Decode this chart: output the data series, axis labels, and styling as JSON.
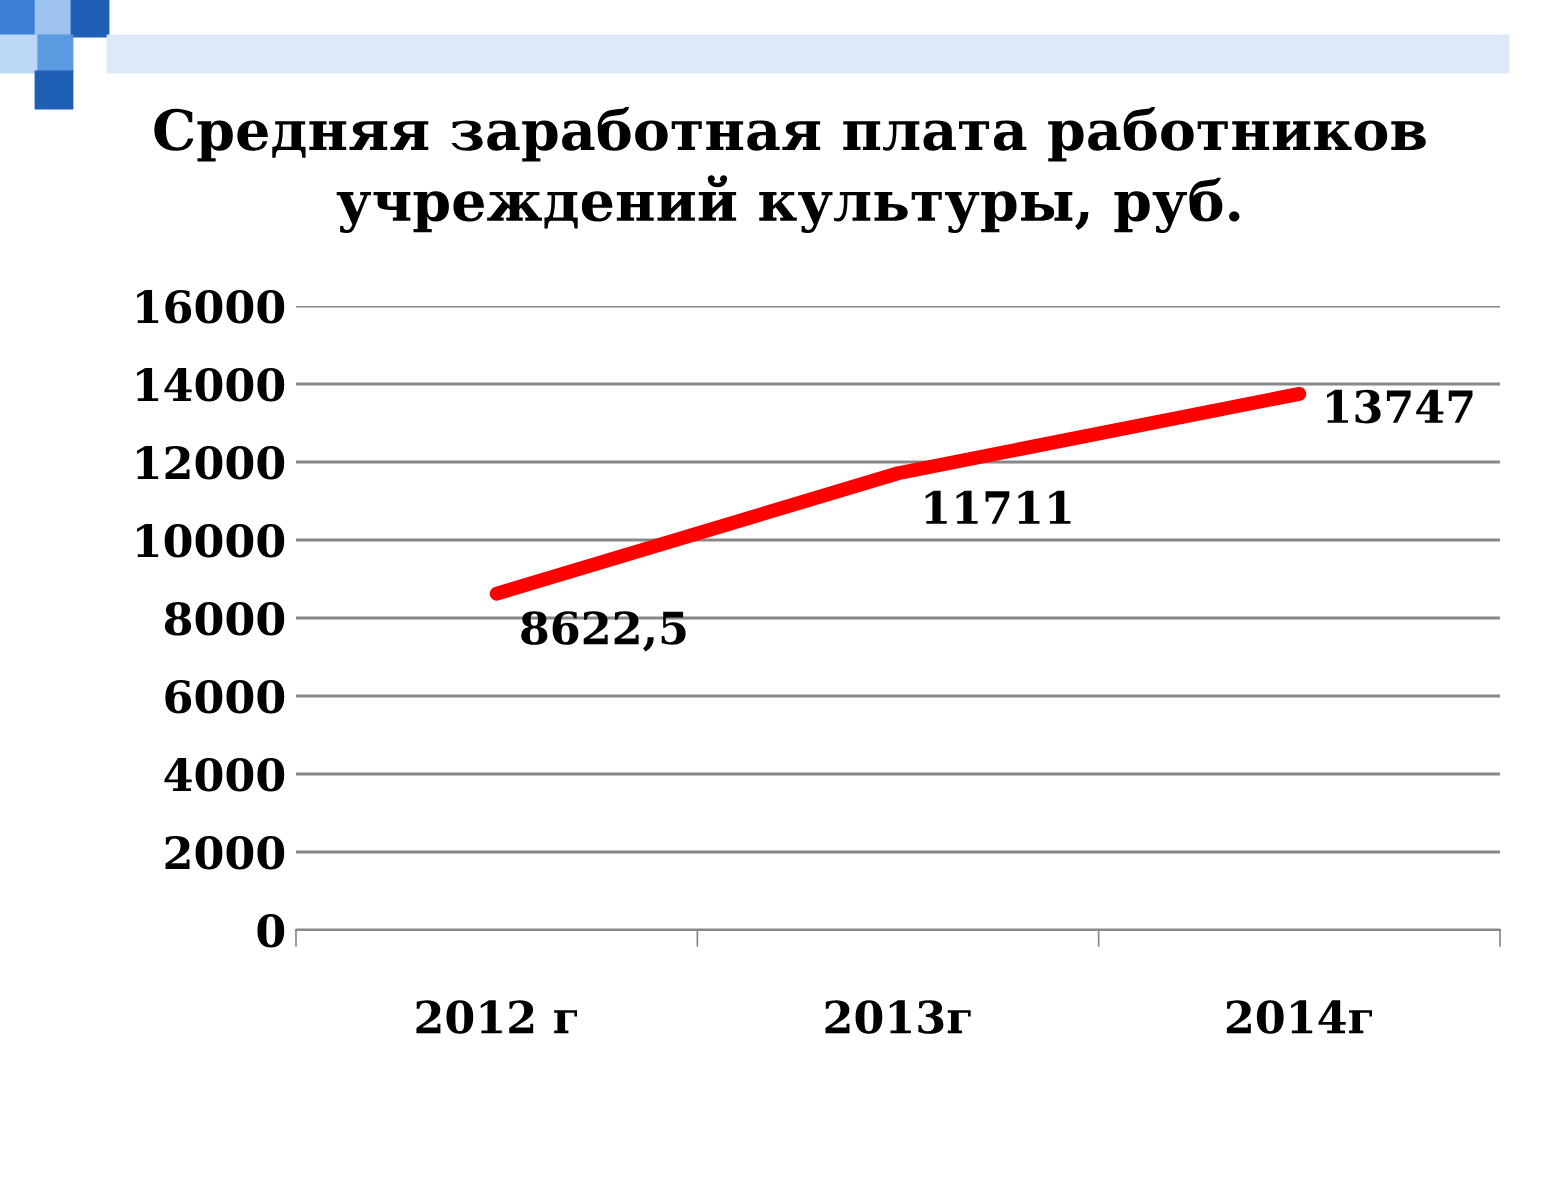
{
  "chart_data": {
    "type": "line",
    "title": "Средняя заработная плата работников\nучреждений культуры, руб.",
    "categories": [
      "2012 г",
      "2013г",
      "2014г"
    ],
    "series": [
      {
        "color": "#ff0000",
        "values": [
          8622.5,
          11711,
          13747
        ],
        "value_labels": [
          "8622,5",
          "11711",
          "13747"
        ]
      }
    ],
    "ylim": [
      0,
      16000
    ],
    "yticks": [
      0,
      2000,
      4000,
      6000,
      8000,
      10000,
      12000,
      14000,
      16000
    ],
    "grid": "y",
    "marker": "none",
    "line_style": "solid"
  }
}
